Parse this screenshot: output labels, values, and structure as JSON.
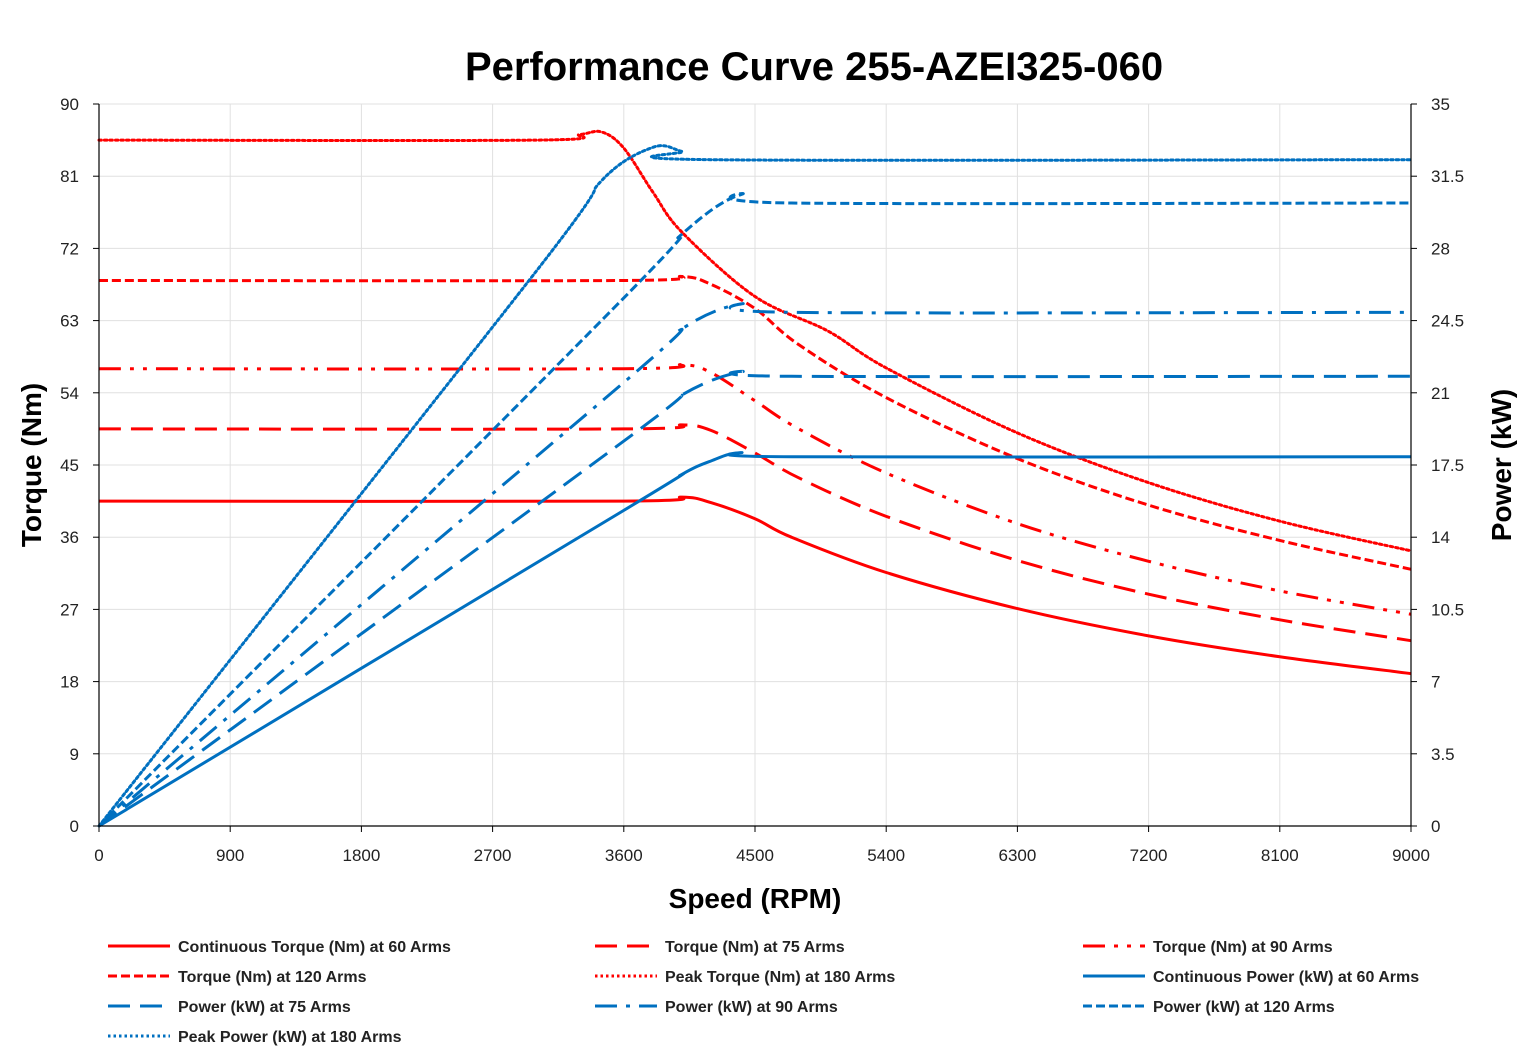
{
  "chart_data": {
    "type": "line",
    "title": "Performance Curve 255-AZEI325-060",
    "xlabel": "Speed (RPM)",
    "ylabel": "Torque (Nm)",
    "y2label": "Power (kW)",
    "xlim": [
      0,
      9000
    ],
    "ylim": [
      0,
      90
    ],
    "y2lim": [
      0,
      35
    ],
    "xticks": [
      0,
      900,
      1800,
      2700,
      3600,
      4500,
      5400,
      6300,
      7200,
      8100,
      9000
    ],
    "yticks": [
      0,
      9,
      18,
      27,
      36,
      45,
      54,
      63,
      72,
      81,
      90
    ],
    "y2ticks": [
      "0",
      "3.5",
      "7",
      "10.5",
      "14",
      "17.5",
      "21",
      "24.5",
      "28",
      "31.5",
      "35"
    ],
    "grid": true,
    "legend_placement": "bottom",
    "series": [
      {
        "name": "Continuous Torque (Nm) at 60 Arms",
        "axis": "left",
        "color": "#ff0000",
        "style": "solid",
        "points": [
          [
            0,
            40.5
          ],
          [
            3600,
            40.5
          ],
          [
            4000,
            41
          ],
          [
            4200,
            40.3
          ],
          [
            4500,
            38.3
          ],
          [
            4750,
            36.0
          ],
          [
            5400,
            31.6
          ],
          [
            6300,
            27.1
          ],
          [
            7200,
            23.7
          ],
          [
            8100,
            21.1
          ],
          [
            9000,
            19.0
          ]
        ]
      },
      {
        "name": "Torque (Nm) at 75 Arms",
        "axis": "left",
        "color": "#ff0000",
        "style": "long-dash",
        "points": [
          [
            0,
            49.5
          ],
          [
            3600,
            49.5
          ],
          [
            4000,
            50
          ],
          [
            4200,
            49.3
          ],
          [
            4500,
            46.5
          ],
          [
            4800,
            43.4
          ],
          [
            5400,
            38.6
          ],
          [
            6300,
            33.1
          ],
          [
            7200,
            28.9
          ],
          [
            8100,
            25.7
          ],
          [
            9000,
            23.1
          ]
        ]
      },
      {
        "name": "Torque (Nm) at 90 Arms",
        "axis": "left",
        "color": "#ff0000",
        "style": "dash-dot-dot",
        "points": [
          [
            0,
            57
          ],
          [
            3600,
            57
          ],
          [
            4000,
            57.5
          ],
          [
            4200,
            56.5
          ],
          [
            4500,
            53
          ],
          [
            4800,
            49.5
          ],
          [
            5400,
            44
          ],
          [
            6300,
            37.7
          ],
          [
            7200,
            33
          ],
          [
            8100,
            29.3
          ],
          [
            9000,
            26.4
          ]
        ]
      },
      {
        "name": "Torque (Nm) at 120 Arms",
        "axis": "left",
        "color": "#ff0000",
        "style": "short-dash",
        "points": [
          [
            0,
            68
          ],
          [
            3600,
            68
          ],
          [
            4000,
            68.5
          ],
          [
            4200,
            67.5
          ],
          [
            4500,
            64.5
          ],
          [
            4800,
            60
          ],
          [
            5400,
            53.4
          ],
          [
            6300,
            45.8
          ],
          [
            7200,
            40
          ],
          [
            8100,
            35.6
          ],
          [
            9000,
            32
          ]
        ]
      },
      {
        "name": "Peak Torque (Nm) at 180 Arms",
        "axis": "left",
        "color": "#ff0000",
        "style": "dotted",
        "points": [
          [
            0,
            85.5
          ],
          [
            3000,
            85.5
          ],
          [
            3300,
            86.2
          ],
          [
            3450,
            86.5
          ],
          [
            3600,
            84.5
          ],
          [
            3800,
            79
          ],
          [
            4000,
            74
          ],
          [
            4500,
            66
          ],
          [
            5000,
            61.7
          ],
          [
            5400,
            57.1
          ],
          [
            6300,
            49
          ],
          [
            7200,
            42.8
          ],
          [
            8100,
            38
          ],
          [
            9000,
            34.3
          ]
        ]
      },
      {
        "name": "Continuous Power (kW) at 60 Arms",
        "axis": "right",
        "color": "#0070c0",
        "style": "solid",
        "points": [
          [
            0,
            0
          ],
          [
            3600,
            15.3
          ],
          [
            4000,
            17.05
          ],
          [
            4200,
            17.7
          ],
          [
            4400,
            18.1
          ],
          [
            4750,
            17.9
          ],
          [
            9000,
            17.9
          ]
        ]
      },
      {
        "name": "Power (kW) at 75 Arms",
        "axis": "right",
        "color": "#0070c0",
        "style": "long-dash",
        "points": [
          [
            0,
            0
          ],
          [
            3600,
            18.66
          ],
          [
            4000,
            20.9
          ],
          [
            4400,
            22.0
          ],
          [
            4750,
            21.8
          ],
          [
            9000,
            21.8
          ]
        ]
      },
      {
        "name": "Power (kW) at 90 Arms",
        "axis": "right",
        "color": "#0070c0",
        "style": "dash-dot",
        "points": [
          [
            0,
            0
          ],
          [
            3600,
            21.5
          ],
          [
            4000,
            24.1
          ],
          [
            4400,
            25.3
          ],
          [
            4750,
            24.9
          ],
          [
            9000,
            24.9
          ]
        ]
      },
      {
        "name": "Power (kW) at 120 Arms",
        "axis": "right",
        "color": "#0070c0",
        "style": "short-dash",
        "points": [
          [
            0,
            0
          ],
          [
            3600,
            25.6
          ],
          [
            4000,
            28.7
          ],
          [
            4400,
            30.6
          ],
          [
            4750,
            30.2
          ],
          [
            9000,
            30.2
          ]
        ]
      },
      {
        "name": "Peak Power (kW) at 180 Arms",
        "axis": "right",
        "color": "#0070c0",
        "style": "dotted",
        "points": [
          [
            0,
            0
          ],
          [
            3000,
            26.9
          ],
          [
            3450,
            31.3
          ],
          [
            3800,
            32.9
          ],
          [
            4000,
            32.7
          ],
          [
            4200,
            32.3
          ],
          [
            9000,
            32.3
          ]
        ]
      }
    ]
  }
}
